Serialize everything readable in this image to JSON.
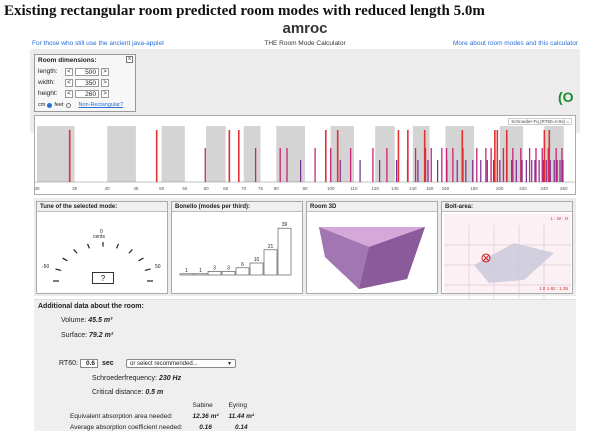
{
  "heading": "Existing rectangular room predicted room modes with reduced length 5.0m",
  "app": {
    "logo": "amroc",
    "subtitle": "THE Room Mode Calculator",
    "link_left": "For those who still use the ancient java-applet",
    "link_right": "More about room modes and this calculator"
  },
  "room_dimensions": {
    "title": "Room dimensions:",
    "close": "x",
    "rows": [
      {
        "label": "length:",
        "value": "500",
        "dec": "<",
        "inc": ">"
      },
      {
        "label": "width:",
        "value": "350",
        "dec": "<",
        "inc": ">"
      },
      {
        "label": "height:",
        "value": "260",
        "dec": "<",
        "inc": ">"
      }
    ],
    "units": {
      "cm": "cm",
      "feet": "feet",
      "selected": "cm"
    },
    "non_rectangular": "Non-Rectangular?"
  },
  "status_glyph": "(O",
  "spectrum": {
    "legend": "Schroeder-Fq (RT60=0.6s) =",
    "ticks": [
      "30",
      "35",
      "40",
      "45",
      "50",
      "55",
      "60",
      "65",
      "70",
      "75",
      "80",
      "90",
      "100",
      "110",
      "120",
      "130",
      "140",
      "150",
      "160",
      "180",
      "200",
      "220",
      "240",
      "260"
    ],
    "colors": {
      "axial": "#e03030",
      "tangential": "#cc2277",
      "oblique": "#7a2a90",
      "band": "#d4d4d4"
    },
    "axial_modes": [
      34.3,
      49.0,
      66.0,
      68.6,
      98.0,
      102.9,
      132.0,
      137.2,
      147.0,
      171.5,
      196.0,
      198.0,
      205.8,
      240.1,
      245.0
    ],
    "tangential_modes": [
      59.8,
      73.5,
      81.3,
      83.6,
      93.8,
      100.0,
      108.5,
      118.9,
      125.9,
      141.6,
      147.5,
      151.0,
      157.7,
      160.8,
      165.0,
      172.0,
      182.0,
      188.9,
      193.0,
      203.0,
      211.0,
      218.0,
      226.0,
      232.0,
      238.0,
      244.0,
      252.0,
      258.0
    ],
    "oblique_modes": [
      88.4,
      104.0,
      112.8,
      122.2,
      131.0,
      137.0,
      143.0,
      149.0,
      155.0,
      161.0,
      168.0,
      174.0,
      179.0,
      185.0,
      190.0,
      195.0,
      200.0,
      206.0,
      210.0,
      214.0,
      219.0,
      223.0,
      228.0,
      231.0,
      235.0,
      239.0,
      242.0,
      246.0,
      250.0,
      253.0,
      256.0,
      259.0
    ]
  },
  "panels": {
    "tune": {
      "title": "Tune of the selected mode:",
      "unit": "cents",
      "zero": "0",
      "min": "-50",
      "max": "50",
      "value": "?"
    },
    "bonello": {
      "title": "Bonello (modes per third):",
      "counts": [
        1,
        1,
        3,
        3,
        6,
        10,
        21,
        39
      ]
    },
    "room3d": {
      "title": "Room 3D"
    },
    "bolt": {
      "title": "Bolt-area:",
      "top_right": "L : W : H",
      "bottom_right": "1.92 : 1.35",
      "bottom_left": "1.0"
    }
  },
  "additional": {
    "title": "Additional data about the room:",
    "volume_label": "Volume:",
    "volume_value": "45.5 m³",
    "surface_label": "Surface:",
    "surface_value": "79.2 m²",
    "rt60_label": "RT60:",
    "rt60_value": "0.6",
    "rt60_unit": "sec",
    "rt60_select": "or select recommended...",
    "schroeder_label": "Schroederfrequency:",
    "schroeder_value": "230 Hz",
    "critical_label": "Critical distance:",
    "critical_value": "0.5 m",
    "table": {
      "headers": [
        "",
        "Sabine",
        "Eyring"
      ],
      "rows": [
        {
          "label": "Equivalent absorption area needed:",
          "sabine": "12.36 m²",
          "eyring": "11.44 m²"
        },
        {
          "label": "Average absorption coefficient needed:",
          "sabine": "0.16",
          "eyring": "0.14"
        }
      ]
    }
  }
}
